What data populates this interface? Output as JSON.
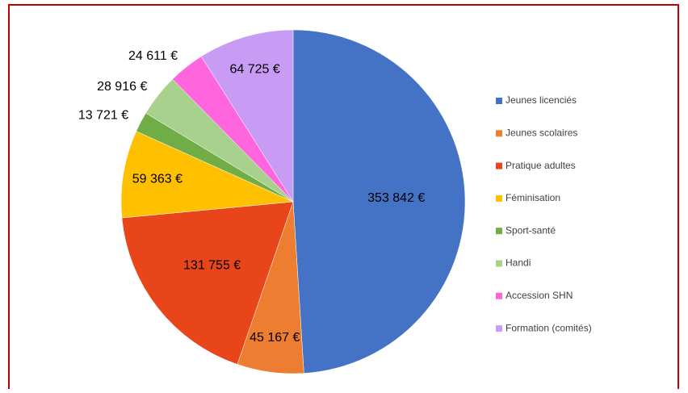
{
  "chart_data": {
    "type": "pie",
    "categories": [
      "Jeunes licenciés",
      "Jeunes scolaires",
      "Pratique adultes",
      "Féminisation",
      "Sport-santé",
      "Handi",
      "Accession SHN",
      "Formation (comités)"
    ],
    "values": [
      353842,
      45167,
      131755,
      59363,
      13721,
      28916,
      24611,
      64725
    ],
    "value_labels": [
      "353 842 €",
      "45 167 €",
      "131 755 €",
      "59 363 €",
      "13 721 €",
      "28 916 €",
      "24 611 €",
      "64 725 €"
    ],
    "colors": [
      "#4472c4",
      "#ed7d31",
      "#e8451a",
      "#ffc000",
      "#70ad47",
      "#a9d18e",
      "#ff66dd",
      "#c89bf5"
    ],
    "legend": "right"
  }
}
